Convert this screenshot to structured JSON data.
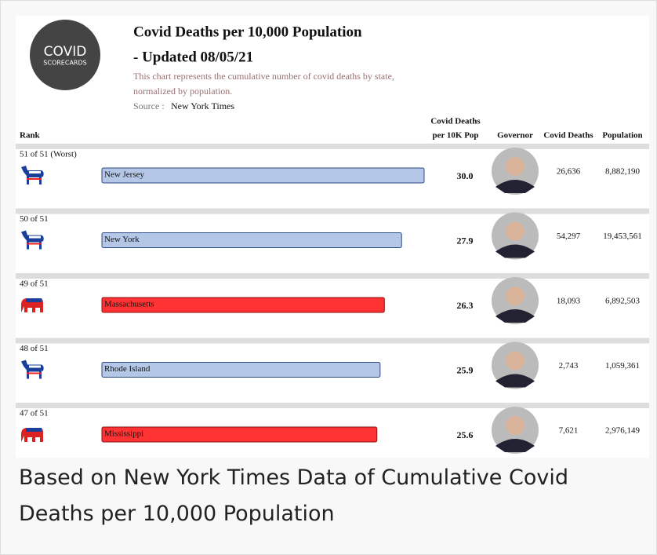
{
  "logo": {
    "line1": "COVID",
    "line2": "SCORECARDS"
  },
  "header": {
    "title_lines": [
      "Covid Deaths per 10,000 Population",
      "- Updated 08/05/21"
    ],
    "subtitle_lines": [
      "This chart represents the cumulative number of covid deaths by state,",
      "normalized by population."
    ],
    "source_label": "Source :",
    "source": "New York Times"
  },
  "table": {
    "columns": {
      "rank": "Rank",
      "value": [
        "Covid Deaths",
        "per 10K Pop"
      ],
      "governor": "Governor",
      "deaths": "Covid Deaths",
      "population": "Population"
    },
    "rows": [
      {
        "rank": "51 of 51 (Worst)",
        "state": "New Jersey",
        "value": 30.0,
        "value_label": "30.0",
        "deaths": "26,636",
        "population": "8,882,190",
        "color": "#b4c7e7",
        "icon": "donkey"
      },
      {
        "rank": "50 of 51",
        "state": "New York",
        "value": 27.9,
        "value_label": "27.9",
        "deaths": "54,297",
        "population": "19,453,561",
        "color": "#b4c7e7",
        "icon": "donkey"
      },
      {
        "rank": "49 of 51",
        "state": "Massachusetts",
        "value": 26.3,
        "value_label": "26.3",
        "deaths": "18,093",
        "population": "6,892,503",
        "color": "#ff3333",
        "icon": "elephant"
      },
      {
        "rank": "48 of 51",
        "state": "Rhode Island",
        "value": 25.9,
        "value_label": "25.9",
        "deaths": "2,743",
        "population": "1,059,361",
        "color": "#b4c7e7",
        "icon": "donkey"
      },
      {
        "rank": "47 of 51",
        "state": "Mississippi",
        "value": 25.6,
        "value_label": "25.6",
        "deaths": "7,621",
        "population": "2,976,149",
        "color": "#ff3333",
        "icon": "elephant"
      }
    ]
  },
  "caption": "Based on New York Times Data of Cumulative Covid Deaths per 10,000 Population"
}
